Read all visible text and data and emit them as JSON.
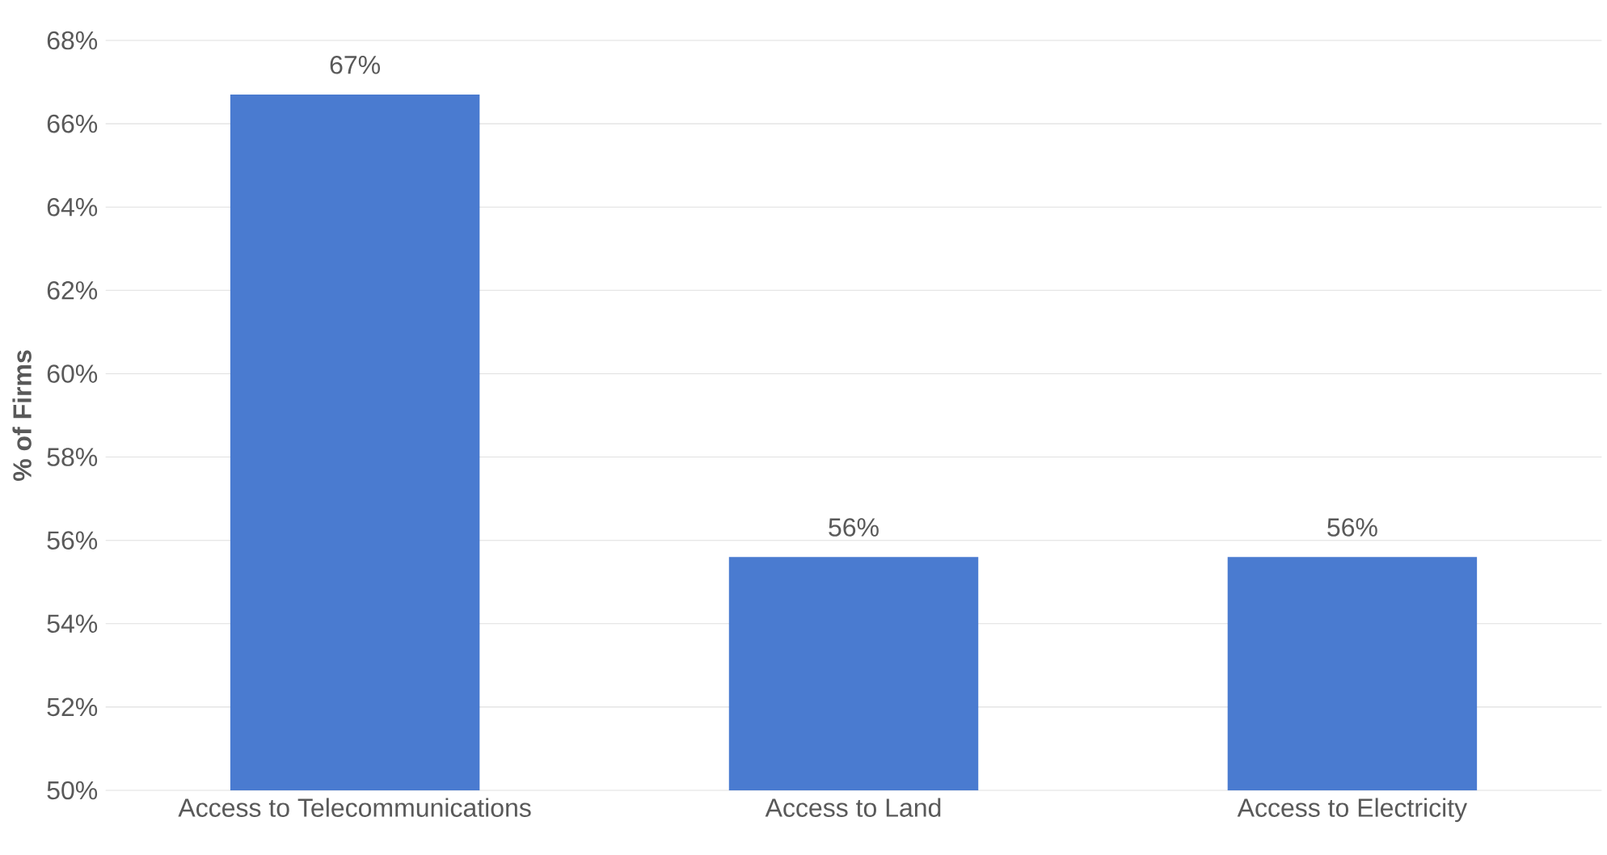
{
  "chart_data": {
    "type": "bar",
    "ylabel": "% of Firms",
    "categories": [
      "Access to Telecommunications",
      "Access to Land",
      "Access to Electricity"
    ],
    "values": [
      66.7,
      55.6,
      55.6
    ],
    "value_labels": [
      "67%",
      "56%",
      "56%"
    ],
    "color": "#4a7bd0",
    "ylim": [
      50,
      68
    ],
    "yticks": [
      {
        "value": 50,
        "label": "50%"
      },
      {
        "value": 52,
        "label": "52%"
      },
      {
        "value": 54,
        "label": "54%"
      },
      {
        "value": 56,
        "label": "56%"
      },
      {
        "value": 58,
        "label": "58%"
      },
      {
        "value": 60,
        "label": "60%"
      },
      {
        "value": 62,
        "label": "62%"
      },
      {
        "value": 64,
        "label": "64%"
      },
      {
        "value": 66,
        "label": "66%"
      },
      {
        "value": 68,
        "label": "68%"
      }
    ],
    "grid": "y"
  }
}
